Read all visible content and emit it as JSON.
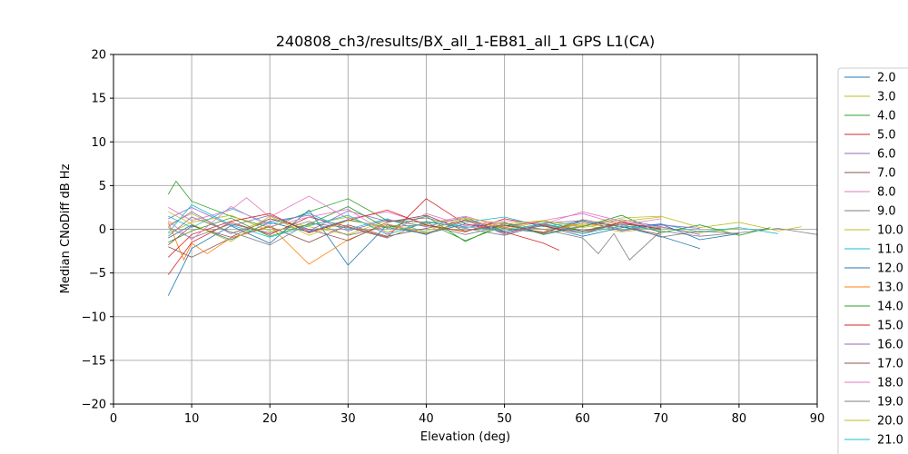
{
  "chart_data": {
    "type": "line",
    "title": "240808_ch3/results/BX_all_1-EB81_all_1 GPS L1(CA)",
    "xlabel": "Elevation (deg)",
    "ylabel": "Median CNoDiff dB Hz",
    "xlim": [
      0,
      90
    ],
    "ylim": [
      -20,
      20
    ],
    "xticks": [
      0,
      10,
      20,
      30,
      40,
      50,
      60,
      70,
      80,
      90
    ],
    "yticks": [
      -20,
      -15,
      -10,
      -5,
      0,
      5,
      10,
      15,
      20
    ],
    "grid": true,
    "legend_position": "right-outside",
    "series": [
      {
        "name": "2.0",
        "color": "#1f77b4",
        "x": [
          7,
          10,
          15,
          20,
          25,
          30,
          35,
          40,
          45,
          50,
          55,
          60,
          65,
          70,
          75
        ],
        "y": [
          -1.0,
          0.5,
          -1.2,
          0.8,
          -0.3,
          1.1,
          0.2,
          -0.5,
          0.6,
          0.1,
          -0.4,
          0.9,
          0.3,
          -0.8,
          -2.2
        ]
      },
      {
        "name": "3.0",
        "color": "#bcbd22",
        "x": [
          7,
          10,
          15,
          20,
          25,
          30,
          35,
          40,
          45,
          50,
          55,
          60,
          65,
          70,
          75,
          80
        ],
        "y": [
          0.5,
          1.8,
          -0.5,
          1.2,
          0.3,
          -0.6,
          1.0,
          0.4,
          -0.2,
          0.7,
          0.0,
          0.5,
          -0.3,
          0.2,
          -0.4,
          0.1
        ]
      },
      {
        "name": "4.0",
        "color": "#2ca02c",
        "x": [
          7,
          8,
          10,
          15,
          20,
          25,
          30,
          35,
          40,
          45,
          50,
          55,
          60,
          65,
          70
        ],
        "y": [
          4.0,
          5.5,
          3.2,
          1.5,
          0.2,
          2.0,
          3.5,
          1.0,
          0.8,
          -1.3,
          0.4,
          0.9,
          -0.2,
          0.6,
          0.1
        ]
      },
      {
        "name": "5.0",
        "color": "#d62728",
        "x": [
          7,
          10,
          15,
          20,
          25,
          30,
          35,
          40,
          45,
          50,
          55,
          57
        ],
        "y": [
          -5.2,
          -1.5,
          0.8,
          -0.6,
          1.4,
          0.3,
          -0.9,
          3.5,
          0.6,
          -0.3,
          -1.6,
          -2.4
        ]
      },
      {
        "name": "6.0",
        "color": "#9467bd",
        "x": [
          7,
          10,
          15,
          20,
          25,
          30,
          35,
          40,
          45,
          50,
          55,
          60,
          65,
          70,
          75
        ],
        "y": [
          1.2,
          2.5,
          0.4,
          1.6,
          -0.2,
          2.1,
          0.9,
          1.3,
          0.2,
          0.8,
          -0.5,
          0.4,
          1.1,
          0.3,
          -0.6
        ]
      },
      {
        "name": "7.0",
        "color": "#8c564b",
        "x": [
          7,
          10,
          15,
          20,
          25,
          30,
          35,
          40,
          45,
          50,
          55,
          60,
          65,
          70
        ],
        "y": [
          -2.0,
          -3.2,
          -1.0,
          0.3,
          -1.5,
          0.5,
          -0.8,
          0.1,
          1.0,
          -0.4,
          0.6,
          -0.2,
          0.8,
          -0.3
        ]
      },
      {
        "name": "8.0",
        "color": "#e377c2",
        "x": [
          7,
          10,
          15,
          17,
          20,
          25,
          30,
          35,
          40,
          45,
          50,
          55,
          60,
          65,
          70
        ],
        "y": [
          2.5,
          1.0,
          2.2,
          3.6,
          1.4,
          3.8,
          1.2,
          2.0,
          0.6,
          1.5,
          0.2,
          1.0,
          1.8,
          0.5,
          1.2
        ]
      },
      {
        "name": "9.0",
        "color": "#7f7f7f",
        "x": [
          7,
          10,
          15,
          20,
          25,
          30,
          35,
          40,
          45,
          50,
          55,
          60,
          62,
          64,
          66,
          70,
          75,
          80,
          85,
          90
        ],
        "y": [
          0.2,
          -1.0,
          0.6,
          -0.4,
          0.9,
          -0.7,
          0.3,
          0.5,
          -0.6,
          0.4,
          0.0,
          -1.0,
          -2.8,
          -0.5,
          -3.5,
          -0.2,
          -0.8,
          -0.4,
          0.1,
          -0.6
        ]
      },
      {
        "name": "10.0",
        "color": "#bcbd22",
        "x": [
          7,
          10,
          15,
          20,
          25,
          30,
          35,
          40,
          45,
          50,
          55,
          60,
          65,
          70,
          75,
          80,
          85,
          88
        ],
        "y": [
          -0.5,
          0.8,
          1.6,
          -0.2,
          0.5,
          1.4,
          -0.3,
          0.7,
          1.2,
          0.0,
          0.9,
          0.4,
          1.3,
          1.5,
          0.2,
          0.8,
          -0.2,
          0.3
        ]
      },
      {
        "name": "11.0",
        "color": "#17becf",
        "x": [
          7,
          10,
          15,
          20,
          25,
          30,
          35,
          40,
          45,
          50,
          55,
          60,
          65,
          70,
          75,
          80,
          85
        ],
        "y": [
          1.5,
          0.2,
          2.4,
          0.6,
          1.8,
          0.0,
          1.2,
          -0.4,
          0.8,
          1.4,
          0.3,
          0.9,
          -0.1,
          0.6,
          -0.3,
          0.2,
          -0.5
        ]
      },
      {
        "name": "12.0",
        "color": "#1f77b4",
        "x": [
          7,
          10,
          15,
          20,
          25,
          30,
          35,
          40,
          45,
          50,
          55,
          60,
          65,
          70,
          75,
          80
        ],
        "y": [
          -7.6,
          -2.2,
          0.4,
          -1.6,
          2.2,
          -4.1,
          0.5,
          -0.6,
          1.1,
          -0.2,
          0.4,
          -0.8,
          0.2,
          0.6,
          -1.2,
          -0.5
        ]
      },
      {
        "name": "13.0",
        "color": "#ff7f0e",
        "x": [
          7,
          9,
          10,
          12,
          15,
          20,
          25,
          30,
          35,
          40,
          45,
          50,
          55,
          60,
          65
        ],
        "y": [
          0.8,
          -3.5,
          -1.6,
          -2.8,
          -1.0,
          0.4,
          -4.0,
          -1.2,
          0.6,
          -0.5,
          1.0,
          0.2,
          -0.3,
          0.7,
          0.1
        ]
      },
      {
        "name": "14.0",
        "color": "#2ca02c",
        "x": [
          7,
          10,
          15,
          20,
          25,
          30,
          35,
          40,
          45,
          50,
          55,
          60,
          65,
          70,
          75,
          80,
          84
        ],
        "y": [
          -1.5,
          -0.2,
          1.3,
          -0.8,
          0.6,
          2.6,
          0.1,
          1.5,
          -1.4,
          0.7,
          -0.6,
          0.3,
          1.6,
          -0.4,
          0.5,
          -0.7,
          0.2
        ]
      },
      {
        "name": "15.0",
        "color": "#d62728",
        "x": [
          7,
          10,
          15,
          20,
          25,
          30,
          35,
          40,
          45,
          50,
          55,
          60,
          65,
          70
        ],
        "y": [
          -3.2,
          -0.6,
          0.9,
          1.8,
          -0.4,
          1.0,
          2.2,
          0.5,
          -0.3,
          1.2,
          0.4,
          -0.5,
          0.8,
          0.0
        ]
      },
      {
        "name": "16.0",
        "color": "#9467bd",
        "x": [
          7,
          10,
          15,
          20,
          25,
          30,
          35,
          40,
          45,
          50,
          55,
          60,
          65,
          70,
          75
        ],
        "y": [
          0.3,
          2.0,
          -0.5,
          0.9,
          1.6,
          -0.2,
          1.1,
          0.3,
          1.4,
          -0.6,
          0.7,
          1.0,
          -0.2,
          0.5,
          0.1
        ]
      },
      {
        "name": "17.0",
        "color": "#8c564b",
        "x": [
          7,
          10,
          15,
          20,
          25,
          30,
          35,
          40,
          45,
          50,
          55,
          60,
          65,
          70
        ],
        "y": [
          -1.8,
          0.4,
          -0.9,
          1.2,
          0.0,
          -1.3,
          0.8,
          1.6,
          -0.2,
          0.5,
          -0.4,
          1.1,
          0.3,
          -0.6
        ]
      },
      {
        "name": "18.0",
        "color": "#e377c2",
        "x": [
          7,
          10,
          15,
          20,
          25,
          30,
          35,
          40,
          45,
          50,
          55,
          60,
          65,
          70
        ],
        "y": [
          1.0,
          -1.2,
          2.6,
          0.3,
          1.4,
          2.3,
          -0.5,
          1.8,
          0.4,
          1.0,
          0.6,
          2.0,
          0.9,
          0.2
        ]
      },
      {
        "name": "19.0",
        "color": "#7f7f7f",
        "x": [
          7,
          10,
          15,
          20,
          25,
          30,
          35,
          40,
          45,
          50,
          55,
          60,
          65,
          70,
          75,
          80
        ],
        "y": [
          -0.8,
          1.4,
          -0.3,
          -1.8,
          0.7,
          0.2,
          -1.0,
          0.9,
          0.1,
          -0.7,
          0.5,
          -0.3,
          0.6,
          -0.9,
          -0.2,
          -0.5
        ]
      },
      {
        "name": "20.0",
        "color": "#bcbd22",
        "x": [
          7,
          10,
          15,
          20,
          25,
          30,
          35,
          40,
          45,
          50,
          55,
          60,
          65,
          70
        ],
        "y": [
          2.0,
          0.6,
          -1.4,
          1.5,
          -0.7,
          1.0,
          0.3,
          -0.2,
          1.3,
          0.6,
          1.0,
          0.2,
          0.9,
          1.4
        ]
      },
      {
        "name": "21.0",
        "color": "#17becf",
        "x": [
          7,
          10,
          15,
          20,
          25,
          30,
          35,
          40,
          45,
          50,
          55,
          60,
          65,
          70
        ],
        "y": [
          -0.4,
          2.8,
          0.5,
          -0.9,
          0.4,
          1.6,
          -0.6,
          0.8,
          0.3,
          -0.2,
          0.7,
          -0.5,
          0.4,
          -0.1
        ]
      }
    ]
  }
}
